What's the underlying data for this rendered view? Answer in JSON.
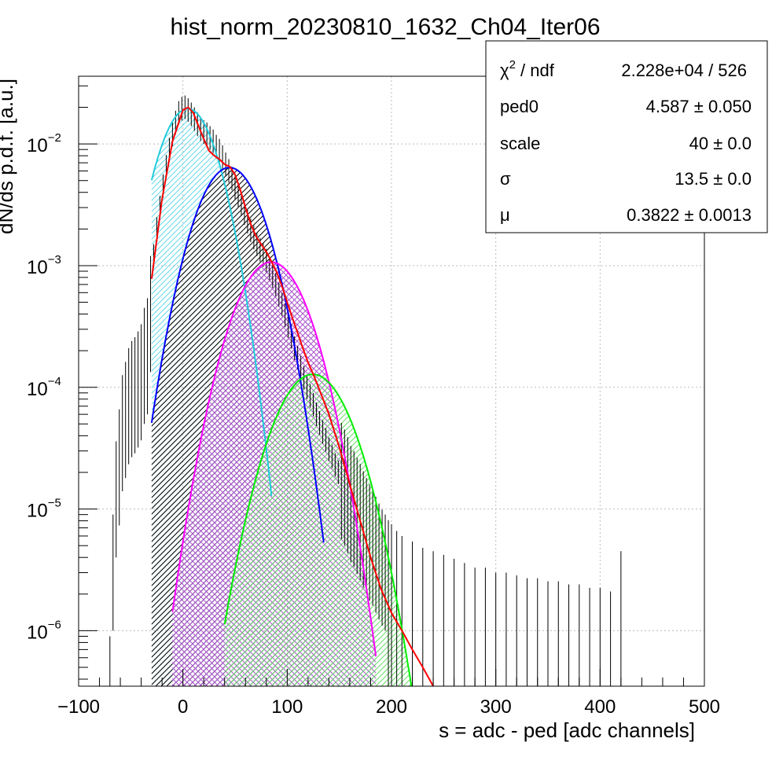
{
  "chart_data": {
    "type": "line",
    "title": "hist_norm_20230810_1632_Ch04_Iter06",
    "xlabel": "s = adc - ped [adc channels]",
    "ylabel": "dN/ds p.d.f. [a.u.]",
    "xlim": [
      -100,
      500
    ],
    "ylim": [
      3.5e-07,
      0.036
    ],
    "log_y": true,
    "grid": true,
    "x_ticks": [
      {
        "value": -100,
        "label": "−100"
      },
      {
        "value": 0,
        "label": "0"
      },
      {
        "value": 100,
        "label": "100"
      },
      {
        "value": 200,
        "label": "200"
      },
      {
        "value": 300,
        "label": "300"
      },
      {
        "value": 400,
        "label": "400"
      },
      {
        "value": 500,
        "label": "500"
      }
    ],
    "y_ticks": [
      {
        "value": 0.01,
        "base": "10",
        "exp": "−2"
      },
      {
        "value": 0.001,
        "base": "10",
        "exp": "−3"
      },
      {
        "value": 0.0001,
        "base": "10",
        "exp": "−4"
      },
      {
        "value": 1e-05,
        "base": "10",
        "exp": "−5"
      },
      {
        "value": 1e-06,
        "base": "10",
        "exp": "−6"
      }
    ],
    "histogram": {
      "color": "#000000",
      "points": [
        [
          -70,
          3e-07
        ],
        [
          -67,
          3e-06
        ],
        [
          -64,
          1.2e-05
        ],
        [
          -61,
          2.2e-05
        ],
        [
          -58,
          4.2e-05
        ],
        [
          -55,
          5.4e-05
        ],
        [
          -52,
          7e-05
        ],
        [
          -49,
          8e-05
        ],
        [
          -46,
          8.6e-05
        ],
        [
          -43,
          9.6e-05
        ],
        [
          -40,
          0.00011
        ],
        [
          -37,
          0.00015
        ],
        [
          -34,
          0.00018
        ],
        [
          -31,
          0.0004
        ],
        [
          -28,
          0.0012
        ],
        [
          -25,
          0.002
        ],
        [
          -22,
          0.003
        ],
        [
          -19,
          0.0045
        ],
        [
          -16,
          0.0065
        ],
        [
          -13,
          0.009
        ],
        [
          -10,
          0.012
        ],
        [
          -7,
          0.015
        ],
        [
          -4,
          0.018
        ],
        [
          -1,
          0.0195
        ],
        [
          2,
          0.02
        ],
        [
          5,
          0.019
        ],
        [
          8,
          0.0175
        ],
        [
          11,
          0.016
        ],
        [
          14,
          0.0145
        ],
        [
          17,
          0.0132
        ],
        [
          20,
          0.0125
        ],
        [
          23,
          0.012
        ],
        [
          26,
          0.0112
        ],
        [
          29,
          0.0105
        ],
        [
          32,
          0.0095
        ],
        [
          35,
          0.0088
        ],
        [
          38,
          0.0078
        ],
        [
          41,
          0.0068
        ],
        [
          44,
          0.006
        ],
        [
          47,
          0.0052
        ],
        [
          50,
          0.0044
        ],
        [
          53,
          0.0038
        ],
        [
          56,
          0.0032
        ],
        [
          59,
          0.0027
        ],
        [
          62,
          0.0023
        ],
        [
          65,
          0.00195
        ],
        [
          68,
          0.0017
        ],
        [
          71,
          0.0015
        ],
        [
          74,
          0.00135
        ],
        [
          77,
          0.00122
        ],
        [
          80,
          0.0011
        ],
        [
          83,
          0.00095
        ],
        [
          86,
          0.00082
        ],
        [
          89,
          0.0007
        ],
        [
          92,
          0.00058
        ],
        [
          95,
          0.00048
        ],
        [
          98,
          0.00039
        ],
        [
          101,
          0.00032
        ],
        [
          104,
          0.00026
        ],
        [
          107,
          0.00021
        ],
        [
          110,
          0.000175
        ],
        [
          113,
          0.000145
        ],
        [
          116,
          0.00012
        ],
        [
          119,
          0.0001
        ],
        [
          122,
          8.5e-05
        ],
        [
          125,
          7.2e-05
        ],
        [
          128,
          6e-05
        ],
        [
          131,
          5.1e-05
        ],
        [
          134,
          4.3e-05
        ],
        [
          137,
          3.7e-05
        ],
        [
          140,
          3.1e-05
        ],
        [
          143,
          2.7e-05
        ],
        [
          146,
          2.3e-05
        ],
        [
          149,
          2e-05
        ],
        [
          152,
          1.7e-05
        ],
        [
          155,
          1.5e-05
        ],
        [
          158,
          1.3e-05
        ],
        [
          161,
          1.1e-05
        ],
        [
          164,
          1e-05
        ],
        [
          167,
          8.8e-06
        ],
        [
          170,
          7.8e-06
        ],
        [
          173,
          6.8e-06
        ],
        [
          176,
          6e-06
        ],
        [
          179,
          5.3e-06
        ],
        [
          182,
          4.8e-06
        ],
        [
          185,
          4.2e-06
        ],
        [
          188,
          3.7e-06
        ],
        [
          191,
          3.3e-06
        ],
        [
          194,
          3e-06
        ],
        [
          197,
          2.7e-06
        ],
        [
          200,
          2.5e-06
        ],
        [
          205,
          2.2e-06
        ],
        [
          210,
          2e-06
        ],
        [
          220,
          1.8e-06
        ],
        [
          230,
          1.6e-06
        ],
        [
          240,
          1.5e-06
        ],
        [
          250,
          1.4e-06
        ],
        [
          260,
          1.3e-06
        ],
        [
          270,
          1.2e-06
        ],
        [
          280,
          1.1e-06
        ],
        [
          290,
          1.1e-06
        ],
        [
          300,
          1e-06
        ],
        [
          310,
          1e-06
        ],
        [
          320,
          9.5e-07
        ],
        [
          330,
          9e-07
        ],
        [
          340,
          9e-07
        ],
        [
          350,
          8.5e-07
        ],
        [
          360,
          8.5e-07
        ],
        [
          370,
          8e-07
        ],
        [
          380,
          8e-07
        ],
        [
          390,
          7.5e-07
        ],
        [
          400,
          7.5e-07
        ],
        [
          410,
          7e-07
        ],
        [
          420,
          1.5e-06
        ]
      ]
    },
    "series": [
      {
        "name": "",
        "color": "#ff0000",
        "role": "total-fit",
        "points": [
          [
            -30,
            0.00078
          ],
          [
            -20,
            0.0035
          ],
          [
            -10,
            0.0105
          ],
          [
            0,
            0.019
          ],
          [
            5,
            0.02
          ],
          [
            10,
            0.018
          ],
          [
            15,
            0.014
          ],
          [
            20,
            0.011
          ],
          [
            25,
            0.0088
          ],
          [
            30,
            0.008
          ],
          [
            35,
            0.0075
          ],
          [
            40,
            0.0068
          ],
          [
            45,
            0.0065
          ],
          [
            50,
            0.0056
          ],
          [
            55,
            0.0042
          ],
          [
            60,
            0.003
          ],
          [
            65,
            0.0022
          ],
          [
            70,
            0.00175
          ],
          [
            75,
            0.0015
          ],
          [
            80,
            0.0013
          ],
          [
            85,
            0.00108
          ],
          [
            90,
            0.00088
          ],
          [
            95,
            0.00068
          ],
          [
            100,
            0.0005
          ],
          [
            105,
            0.00037
          ],
          [
            110,
            0.00028
          ],
          [
            115,
            0.00021
          ],
          [
            120,
            0.00016
          ],
          [
            125,
            0.000128
          ],
          [
            130,
            0.0001
          ],
          [
            140,
            6e-05
          ],
          [
            150,
            3.2e-05
          ],
          [
            160,
            1.6e-05
          ],
          [
            170,
            8e-06
          ],
          [
            180,
            4e-06
          ],
          [
            190,
            2.2e-06
          ],
          [
            200,
            1.4e-06
          ],
          [
            210,
            1e-06
          ],
          [
            220,
            7e-07
          ],
          [
            230,
            5e-07
          ],
          [
            240,
            3.5e-07
          ]
        ]
      },
      {
        "name": "",
        "color": "#22ccdd",
        "hatch": "#66d8e8",
        "role": "pedestal",
        "mean": 4.587,
        "sigma": 21,
        "peak": 0.0195,
        "xmin": -30,
        "xmax": 85
      },
      {
        "name": "",
        "color": "#0000ff",
        "hatch": "#000000",
        "role": "1-pe",
        "mean": 44.6,
        "sigma": 24,
        "peak": 0.0064,
        "xmin": -30,
        "xmax": 135
      },
      {
        "name": "",
        "color": "#ff00ff",
        "hatch": "#aa55cc",
        "role": "2-pe",
        "mean": 84.6,
        "sigma": 26,
        "peak": 0.00107,
        "xmin": -10,
        "xmax": 185
      },
      {
        "name": "",
        "color": "#00ee00",
        "hatch": "#66dd66",
        "role": "3-pe",
        "mean": 124.6,
        "sigma": 27.5,
        "peak": 0.000128,
        "xmin": 40,
        "xmax": 230
      }
    ]
  },
  "stats_box": {
    "rows": [
      {
        "label": "χ",
        "label_sup": "2",
        "label_rest": " / ndf",
        "value": "2.228e+04 / 526"
      },
      {
        "label": "ped0",
        "label_sup": "",
        "label_rest": "",
        "value": "4.587 ± 0.050"
      },
      {
        "label": "scale",
        "label_sup": "",
        "label_rest": "",
        "value": "40 ± 0.0"
      },
      {
        "label": "σ",
        "label_sup": "",
        "label_rest": "",
        "value": "13.5 ± 0.0"
      },
      {
        "label": "μ",
        "label_sup": "",
        "label_rest": "",
        "value": "0.3822 ± 0.0013"
      }
    ]
  }
}
